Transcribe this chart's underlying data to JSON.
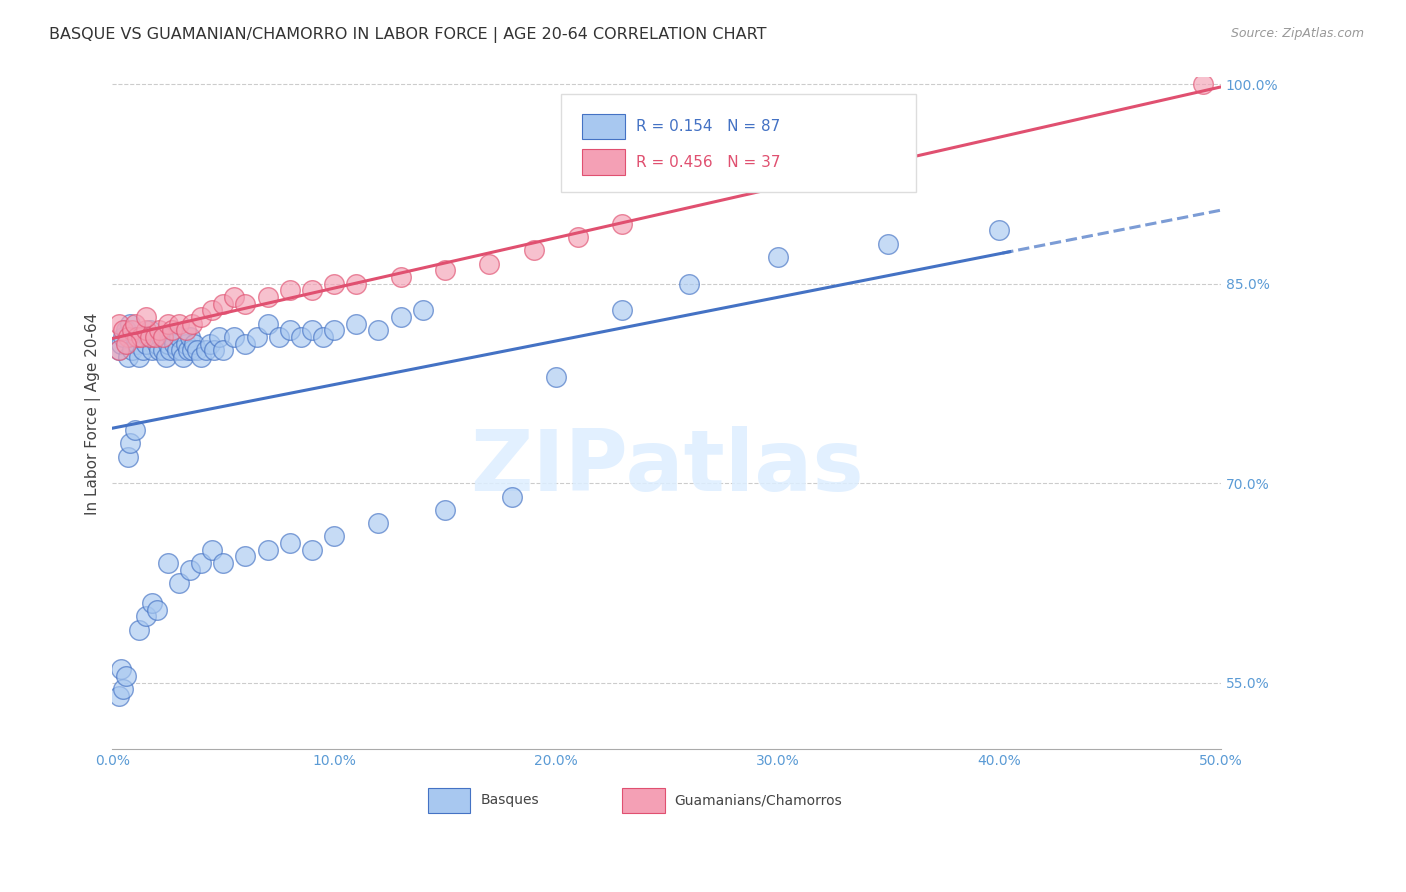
{
  "title": "BASQUE VS GUAMANIAN/CHAMORRO IN LABOR FORCE | AGE 20-64 CORRELATION CHART",
  "source": "Source: ZipAtlas.com",
  "ylabel": "In Labor Force | Age 20-64",
  "xlim": [
    0.0,
    0.5
  ],
  "ylim": [
    0.5,
    1.005
  ],
  "xtick_positions": [
    0.0,
    0.1,
    0.2,
    0.3,
    0.4,
    0.5
  ],
  "xticklabels": [
    "0.0%",
    "10.0%",
    "20.0%",
    "30.0%",
    "40.0%",
    "50.0%"
  ],
  "ytick_positions": [
    0.55,
    0.7,
    0.85,
    1.0
  ],
  "yticklabels": [
    "55.0%",
    "70.0%",
    "85.0%",
    "100.0%"
  ],
  "ytick_color": "#5B9BD5",
  "xtick_color": "#5B9BD5",
  "R_blue": 0.154,
  "N_blue": 87,
  "R_pink": 0.456,
  "N_pink": 37,
  "blue_fill": "#A8C8F0",
  "blue_edge": "#4472C4",
  "pink_fill": "#F4A0B5",
  "pink_edge": "#E05070",
  "blue_line_color": "#4472C4",
  "pink_line_color": "#E05070",
  "watermark": "ZIPatlas",
  "legend_label_blue": "Basques",
  "legend_label_pink": "Guamanians/Chamorros",
  "blue_scatter_x": [
    0.003,
    0.004,
    0.005,
    0.006,
    0.007,
    0.008,
    0.009,
    0.01,
    0.011,
    0.012,
    0.013,
    0.014,
    0.015,
    0.016,
    0.017,
    0.018,
    0.019,
    0.02,
    0.021,
    0.022,
    0.023,
    0.024,
    0.025,
    0.026,
    0.027,
    0.028,
    0.029,
    0.03,
    0.031,
    0.032,
    0.033,
    0.034,
    0.035,
    0.036,
    0.037,
    0.038,
    0.04,
    0.042,
    0.044,
    0.046,
    0.048,
    0.05,
    0.055,
    0.06,
    0.065,
    0.07,
    0.075,
    0.08,
    0.085,
    0.09,
    0.095,
    0.1,
    0.11,
    0.12,
    0.13,
    0.14,
    0.003,
    0.004,
    0.005,
    0.006,
    0.007,
    0.008,
    0.01,
    0.012,
    0.015,
    0.018,
    0.02,
    0.025,
    0.03,
    0.035,
    0.04,
    0.045,
    0.05,
    0.06,
    0.07,
    0.08,
    0.09,
    0.1,
    0.12,
    0.15,
    0.18,
    0.2,
    0.23,
    0.26,
    0.3,
    0.35,
    0.4
  ],
  "blue_scatter_y": [
    0.8,
    0.805,
    0.81,
    0.815,
    0.795,
    0.82,
    0.8,
    0.81,
    0.805,
    0.795,
    0.81,
    0.8,
    0.805,
    0.81,
    0.815,
    0.8,
    0.81,
    0.805,
    0.8,
    0.81,
    0.8,
    0.795,
    0.805,
    0.8,
    0.81,
    0.805,
    0.8,
    0.81,
    0.8,
    0.795,
    0.805,
    0.8,
    0.81,
    0.8,
    0.805,
    0.8,
    0.795,
    0.8,
    0.805,
    0.8,
    0.81,
    0.8,
    0.81,
    0.805,
    0.81,
    0.82,
    0.81,
    0.815,
    0.81,
    0.815,
    0.81,
    0.815,
    0.82,
    0.815,
    0.825,
    0.83,
    0.54,
    0.56,
    0.545,
    0.555,
    0.72,
    0.73,
    0.74,
    0.59,
    0.6,
    0.61,
    0.605,
    0.64,
    0.625,
    0.635,
    0.64,
    0.65,
    0.64,
    0.645,
    0.65,
    0.655,
    0.65,
    0.66,
    0.67,
    0.68,
    0.69,
    0.78,
    0.83,
    0.85,
    0.87,
    0.88,
    0.89
  ],
  "pink_scatter_x": [
    0.003,
    0.005,
    0.007,
    0.009,
    0.011,
    0.013,
    0.015,
    0.017,
    0.019,
    0.021,
    0.023,
    0.025,
    0.027,
    0.03,
    0.033,
    0.036,
    0.04,
    0.045,
    0.05,
    0.055,
    0.06,
    0.07,
    0.08,
    0.09,
    0.1,
    0.11,
    0.13,
    0.15,
    0.17,
    0.19,
    0.21,
    0.23,
    0.003,
    0.006,
    0.01,
    0.015,
    0.492
  ],
  "pink_scatter_y": [
    0.82,
    0.815,
    0.81,
    0.815,
    0.81,
    0.81,
    0.815,
    0.81,
    0.81,
    0.815,
    0.81,
    0.82,
    0.815,
    0.82,
    0.815,
    0.82,
    0.825,
    0.83,
    0.835,
    0.84,
    0.835,
    0.84,
    0.845,
    0.845,
    0.85,
    0.85,
    0.855,
    0.86,
    0.865,
    0.875,
    0.885,
    0.895,
    0.8,
    0.805,
    0.82,
    0.825,
    1.0
  ]
}
